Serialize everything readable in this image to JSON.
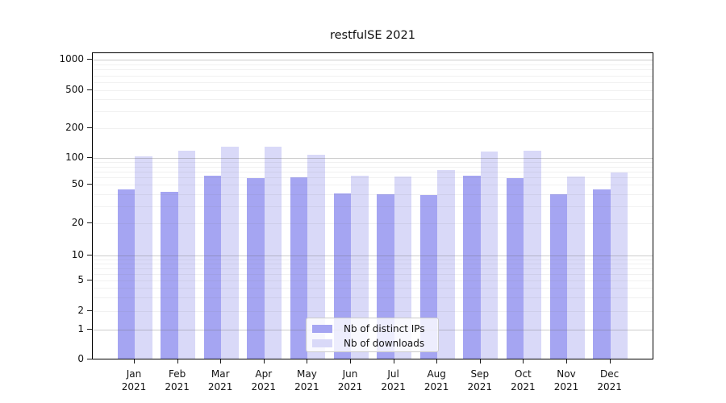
{
  "title": "restfulSE 2021",
  "colors": {
    "distinct_ips_bar": "#a5a5f2",
    "downloads_bar": "#d9d9f8",
    "major_grid": "#c9c9c9",
    "minor_grid": "#ebebeb",
    "axis": "#000000"
  },
  "legend": {
    "items": [
      {
        "label": "Nb of distinct IPs",
        "color": "#a5a5f2"
      },
      {
        "label": "Nb of downloads",
        "color": "#d9d9f8"
      }
    ]
  },
  "chart_data": {
    "type": "bar",
    "title": "restfulSE 2021",
    "categories": [
      "Jan 2021",
      "Feb 2021",
      "Mar 2021",
      "Apr 2021",
      "May 2021",
      "Jun 2021",
      "Jul 2021",
      "Aug 2021",
      "Sep 2021",
      "Oct 2021",
      "Nov 2021",
      "Dec 2021"
    ],
    "series": [
      {
        "name": "Nb of distinct IPs",
        "color": "#a5a5f2",
        "values": [
          44,
          41,
          62,
          58,
          59,
          40,
          39,
          38,
          62,
          58,
          39,
          44
        ]
      },
      {
        "name": "Nb of downloads",
        "color": "#d9d9f8",
        "values": [
          102,
          116,
          127,
          128,
          106,
          62,
          60,
          72,
          114,
          117,
          61,
          67
        ]
      }
    ],
    "yscale": "symlog",
    "ylim": [
      0,
      1000
    ],
    "yticks": [
      0,
      1,
      2,
      5,
      10,
      20,
      50,
      100,
      200,
      500,
      1000
    ],
    "grid": true,
    "legend_position": "lower center"
  }
}
